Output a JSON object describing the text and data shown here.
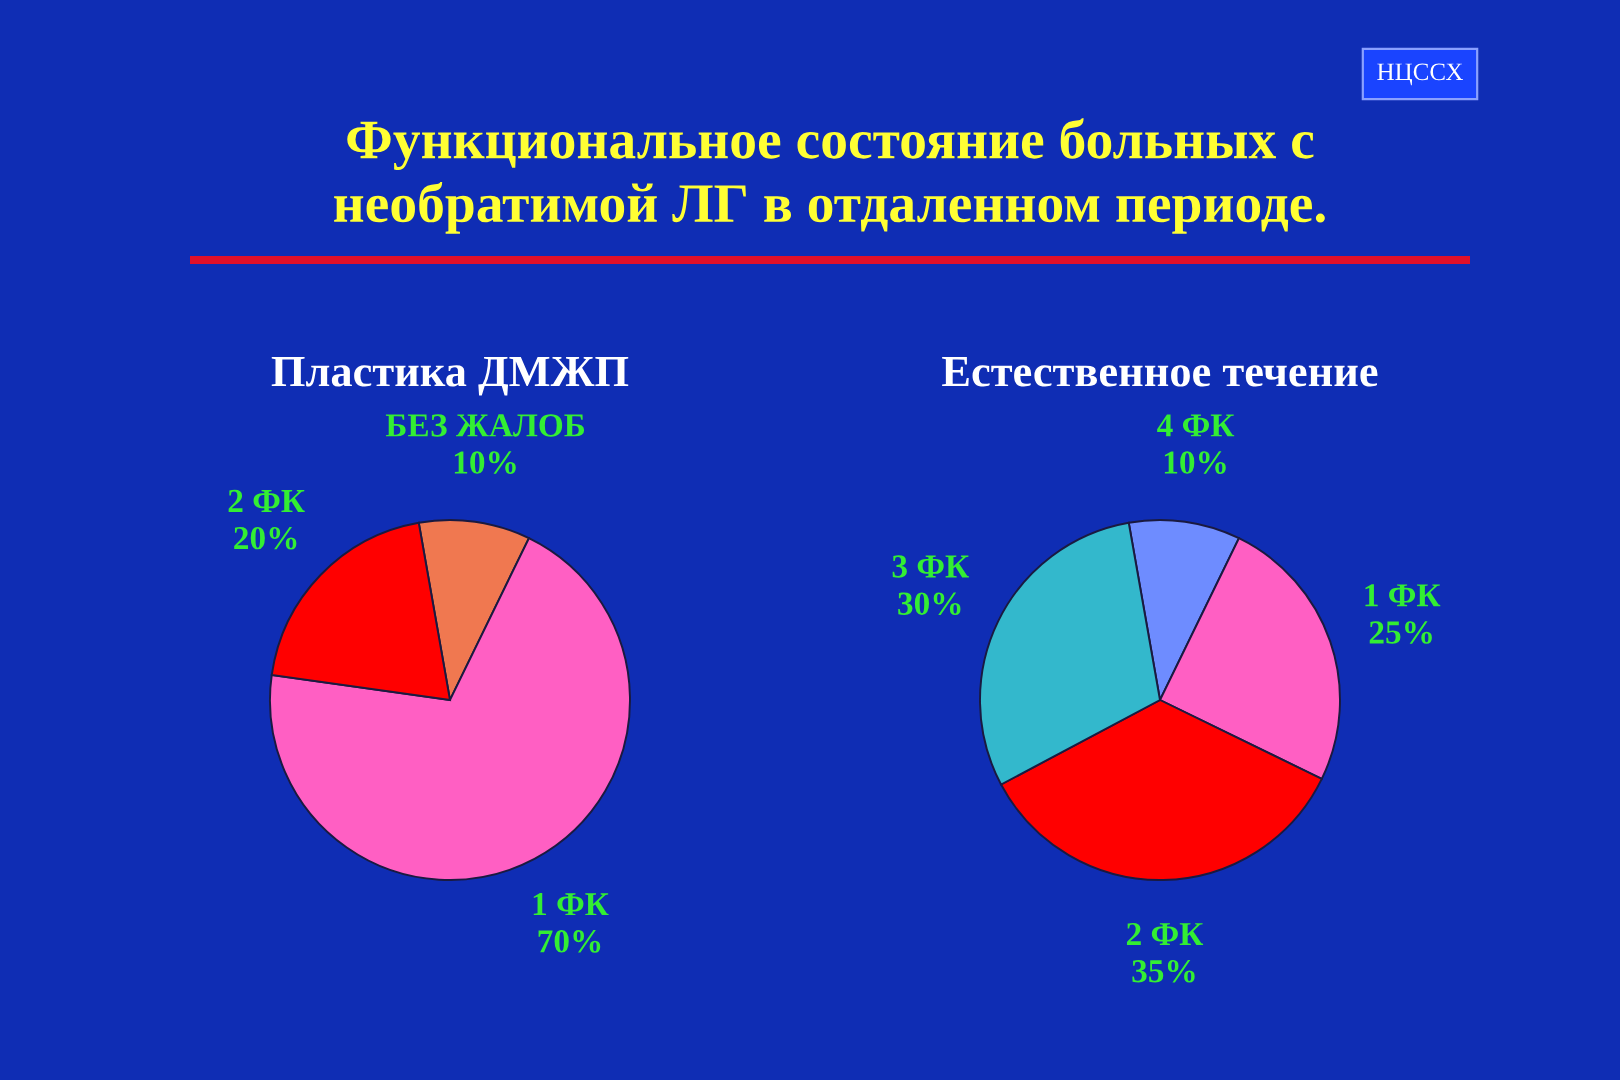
{
  "chart_data": [
    {
      "type": "other",
      "title": "Функциональное состояние больных с\nнеобратимой ЛГ в отдаленном периоде.",
      "annotations": [
        "НЦССХ"
      ]
    },
    {
      "type": "pie",
      "title": "Пластика ДМЖП",
      "categories": [
        "БЕЗ ЖАЛОБ",
        "1 ФК",
        "2 ФК"
      ],
      "values": [
        10,
        70,
        20
      ],
      "value_labels": [
        "10%",
        "70%",
        "20%"
      ],
      "colors": [
        "#f07850",
        "#ff5fc3",
        "#ff0000"
      ]
    },
    {
      "type": "pie",
      "title": "Естественное течение",
      "categories": [
        "4 ФК",
        "1 ФК",
        "2 ФК",
        "3 ФК"
      ],
      "values": [
        10,
        25,
        35,
        30
      ],
      "value_labels": [
        "10%",
        "25%",
        "35%",
        "30%"
      ],
      "colors": [
        "#6e8cff",
        "#ff5fc3",
        "#ff0000",
        "#33b8cc"
      ]
    }
  ]
}
